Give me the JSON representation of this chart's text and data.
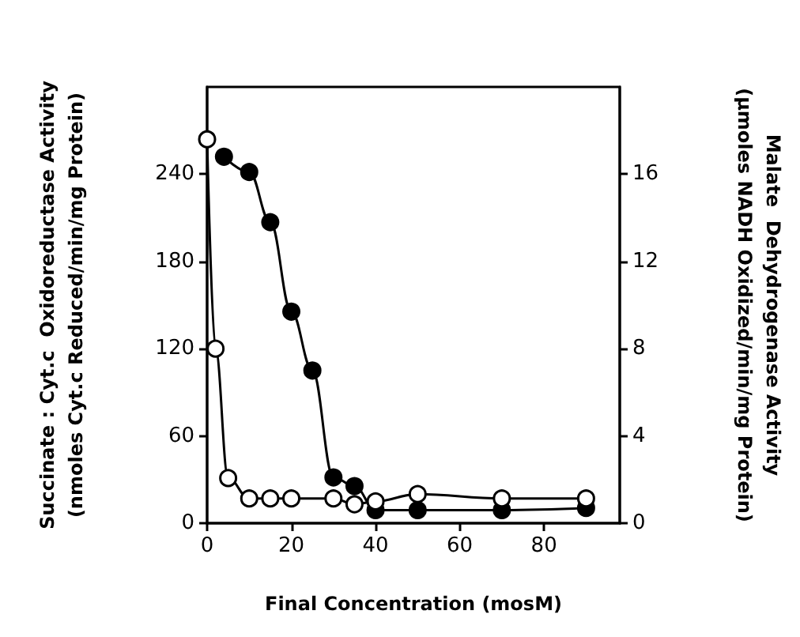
{
  "chart_data": {
    "type": "line",
    "xlabel": "Final Concentration (mosM)",
    "ylabel": "Succinate : Cyt.c  Oxidoreductase Activity\n(nmoles Cyt.c Reduced/min/mg Protein)",
    "y2label": "Malate  Dehydrogenase Activity\n(µmoles NADH Oxidized/min/mg Protein)",
    "xlim": [
      0,
      98
    ],
    "xticks": [
      0,
      20,
      40,
      60,
      80
    ],
    "ylim": [
      0,
      300
    ],
    "yticks": [
      0,
      60,
      120,
      180,
      240
    ],
    "y2lim": [
      0,
      20
    ],
    "y2ticks": [
      0,
      4,
      8,
      12,
      16
    ],
    "marker": "circle",
    "series": [
      {
        "color": "#000000",
        "x": [
          0,
          2,
          5,
          10,
          15,
          20,
          30,
          35,
          40,
          50,
          70,
          90
        ],
        "values": [
          264,
          120,
          31,
          17,
          17,
          17,
          17,
          13,
          15,
          20,
          17,
          17
        ]
      },
      {
        "color": "#000000",
        "axis": "y2",
        "x": [
          4,
          10,
          15,
          20,
          25,
          30,
          35,
          40,
          50,
          70,
          90
        ],
        "values": [
          16.8,
          16.1,
          13.8,
          9.7,
          7.0,
          2.1,
          1.7,
          0.6,
          0.6,
          0.6,
          0.7
        ]
      }
    ]
  }
}
